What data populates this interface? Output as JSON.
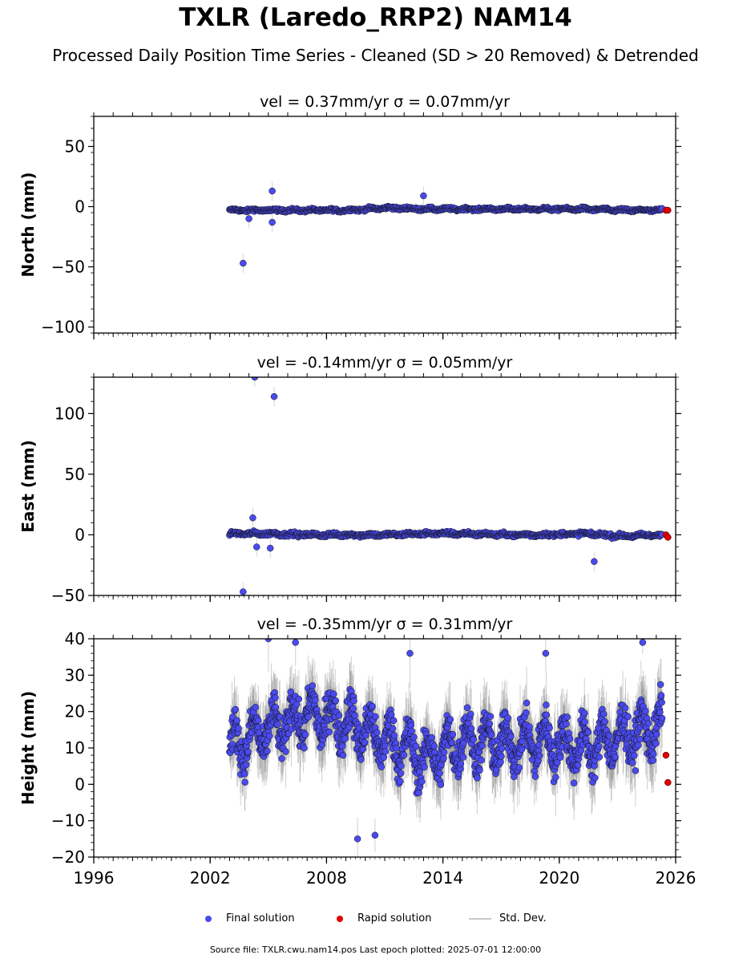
{
  "title": "TXLR (Laredo_RRP2) NAM14",
  "subtitle": "Processed Daily Position Time Series - Cleaned (SD > 20 Removed) & Detrended",
  "footer": "Source file: TXLR.cwu.nam14.pos  Last epoch plotted: 2025-07-01 12:00:00",
  "legend": {
    "final": "Final solution",
    "rapid": "Rapid solution",
    "std": "Std. Dev."
  },
  "colors": {
    "final": "#4a4aee",
    "rapid": "#e00000",
    "std": "#c8c8c8"
  },
  "chart_data": [
    {
      "type": "scatter",
      "title": "vel = 0.37mm/yr   σ = 0.07mm/yr",
      "ylabel": "North (mm)",
      "xlim": [
        1996,
        2026
      ],
      "ylim": [
        -105,
        75
      ],
      "yticks": [
        -100,
        -50,
        0,
        50
      ],
      "xticks": [
        1996,
        2002,
        2008,
        2014,
        2020,
        2026
      ],
      "grid": false,
      "series": [
        {
          "name": "Final solution",
          "x_range": [
            2003.0,
            2025.3
          ],
          "baseline": [
            -3,
            -3,
            -3,
            -3,
            -1,
            -2,
            -2,
            -2,
            -2,
            -2,
            -3,
            -3
          ],
          "noise": 1.5,
          "outliers": [
            [
              2003.7,
              -47
            ],
            [
              2005.2,
              13
            ],
            [
              2005.2,
              -13
            ],
            [
              2004.0,
              -10
            ],
            [
              2013.0,
              9
            ]
          ]
        },
        {
          "name": "Rapid solution",
          "points": [
            [
              2025.5,
              -3
            ],
            [
              2025.6,
              -3
            ]
          ]
        }
      ]
    },
    {
      "type": "scatter",
      "title": "vel = -0.14mm/yr   σ = 0.05mm/yr",
      "ylabel": "East (mm)",
      "xlim": [
        1996,
        2026
      ],
      "ylim": [
        -50,
        130
      ],
      "yticks": [
        -50,
        0,
        50,
        100
      ],
      "xticks": [
        1996,
        2002,
        2008,
        2014,
        2020,
        2026
      ],
      "grid": false,
      "series": [
        {
          "name": "Final solution",
          "x_range": [
            2003.0,
            2025.3
          ],
          "baseline": [
            1,
            1,
            0,
            0,
            0,
            1,
            1,
            0,
            0,
            1,
            -1,
            0
          ],
          "noise": 2.0,
          "outliers": [
            [
              2003.7,
              -47
            ],
            [
              2004.3,
              130
            ],
            [
              2005.3,
              114
            ],
            [
              2004.2,
              14
            ],
            [
              2004.4,
              -10
            ],
            [
              2005.1,
              -11
            ],
            [
              2021.8,
              -22
            ]
          ]
        },
        {
          "name": "Rapid solution",
          "points": [
            [
              2025.5,
              0
            ],
            [
              2025.6,
              -2
            ]
          ]
        }
      ]
    },
    {
      "type": "scatter",
      "title": "vel = -0.35mm/yr   σ = 0.31mm/yr",
      "ylabel": "Height (mm)",
      "xlim": [
        1996,
        2026
      ],
      "ylim": [
        -20,
        40
      ],
      "yticks": [
        -20,
        -10,
        0,
        10,
        20,
        30,
        40
      ],
      "xticks": [
        1996,
        2002,
        2008,
        2014,
        2020,
        2026
      ],
      "grid": false,
      "series": [
        {
          "name": "Final solution",
          "x_range": [
            2003.0,
            2025.3
          ],
          "baseline": [
            10,
            15,
            19,
            17,
            12,
            7,
            12,
            11,
            12,
            10,
            13,
            16
          ],
          "noise": 7.0,
          "outliers": [
            [
              2005.0,
              40
            ],
            [
              2006.4,
              39
            ],
            [
              2012.3,
              36
            ],
            [
              2019.3,
              36
            ],
            [
              2024.3,
              39
            ],
            [
              2009.6,
              -15
            ],
            [
              2010.5,
              -14
            ]
          ]
        },
        {
          "name": "Rapid solution",
          "points": [
            [
              2025.5,
              8
            ],
            [
              2025.6,
              0.5
            ]
          ]
        }
      ]
    }
  ]
}
